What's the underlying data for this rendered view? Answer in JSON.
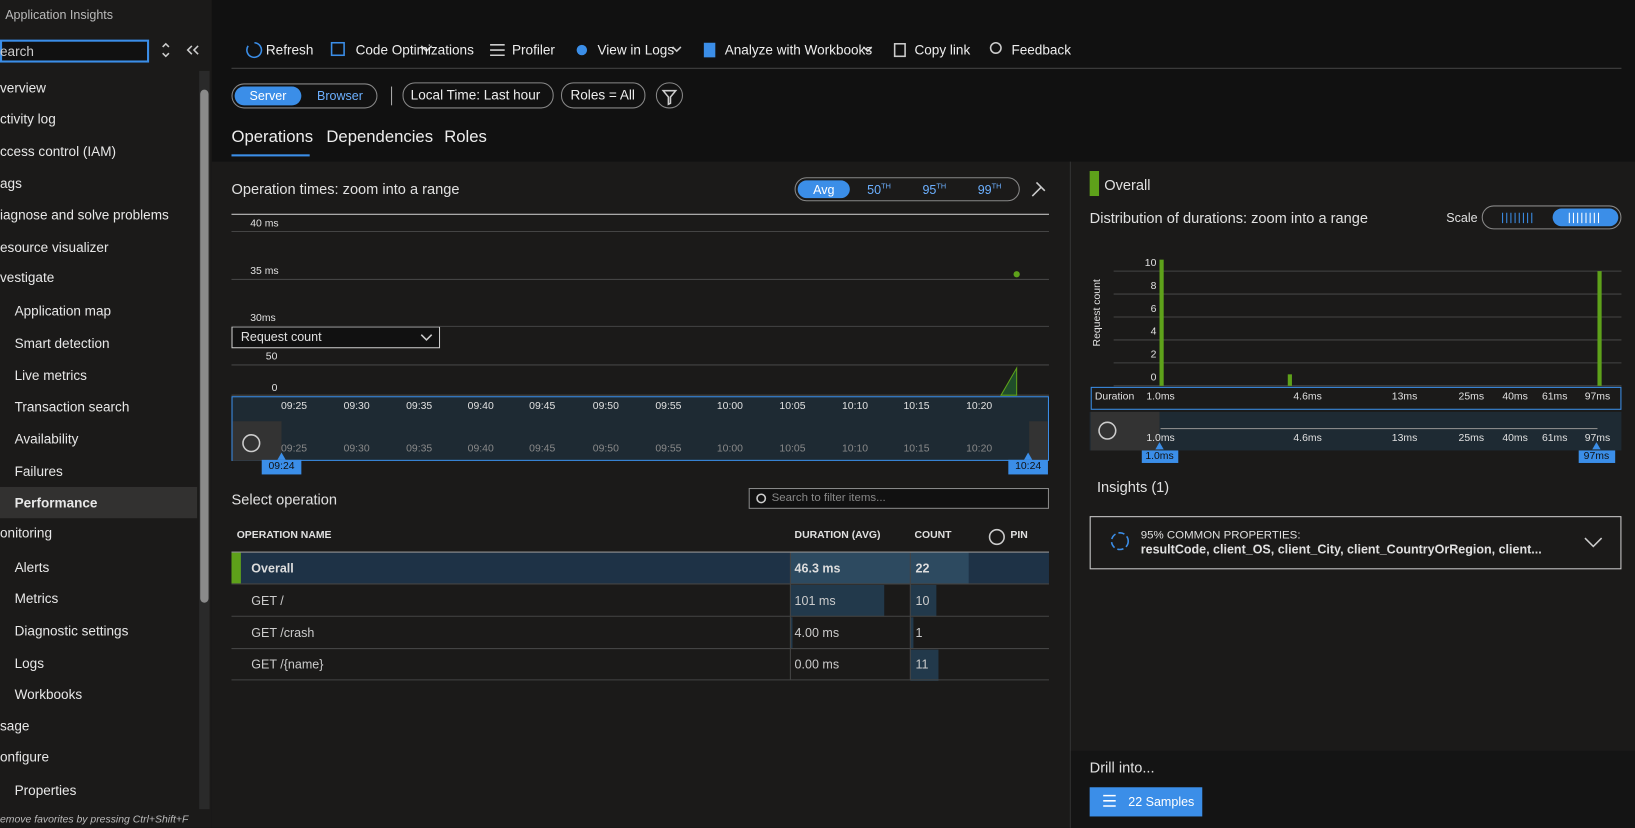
{
  "header": {
    "subtitle": "Application Insights"
  },
  "sidebar": {
    "search_placeholder": "earch",
    "items": [
      {
        "label": "verview",
        "kind": "top"
      },
      {
        "label": "ctivity log",
        "kind": "top"
      },
      {
        "label": "ccess control (IAM)",
        "kind": "top"
      },
      {
        "label": "ags",
        "kind": "top"
      },
      {
        "label": "iagnose and solve problems",
        "kind": "top"
      },
      {
        "label": "esource visualizer",
        "kind": "top"
      },
      {
        "label": "vestigate",
        "kind": "section"
      },
      {
        "label": "Application map",
        "kind": "item"
      },
      {
        "label": "Smart detection",
        "kind": "item"
      },
      {
        "label": "Live metrics",
        "kind": "item"
      },
      {
        "label": "Transaction search",
        "kind": "item"
      },
      {
        "label": "Availability",
        "kind": "item"
      },
      {
        "label": "Failures",
        "kind": "item"
      },
      {
        "label": "Performance",
        "kind": "selected"
      },
      {
        "label": "onitoring",
        "kind": "section"
      },
      {
        "label": "Alerts",
        "kind": "item"
      },
      {
        "label": "Metrics",
        "kind": "item"
      },
      {
        "label": "Diagnostic settings",
        "kind": "item"
      },
      {
        "label": "Logs",
        "kind": "item"
      },
      {
        "label": "Workbooks",
        "kind": "item"
      },
      {
        "label": "sage",
        "kind": "section"
      },
      {
        "label": "onfigure",
        "kind": "section"
      },
      {
        "label": "Properties",
        "kind": "item"
      }
    ],
    "footer": "emove favorites by pressing Ctrl+Shift+F"
  },
  "toolbar": {
    "items": [
      "Refresh",
      "Code Optimizations",
      "Profiler",
      "View in Logs",
      "Analyze with Workbooks",
      "Copy link",
      "Feedback"
    ]
  },
  "filters": {
    "server": "Server",
    "browser": "Browser",
    "time": "Local Time: Last hour",
    "roles": "Roles = All"
  },
  "tabs": [
    "Operations",
    "Dependencies",
    "Roles"
  ],
  "operation_chart": {
    "title": "Operation times: zoom into a range",
    "percentiles": [
      {
        "num": "Avg"
      },
      {
        "num": "50",
        "sup": "TH"
      },
      {
        "num": "95",
        "sup": "TH"
      },
      {
        "num": "99",
        "sup": "TH"
      }
    ],
    "yticks": [
      "40 ms",
      "35 ms",
      "30ms"
    ],
    "metric": "Request count",
    "count_ticks": [
      "50",
      "0"
    ],
    "xticks": [
      "09:25",
      "09:30",
      "09:35",
      "09:40",
      "09:45",
      "09:50",
      "09:55",
      "10:00",
      "10:05",
      "10:10",
      "10:15",
      "10:20"
    ],
    "range": [
      "09:24",
      "10:24"
    ]
  },
  "select_operation": {
    "title": "Select operation",
    "search_placeholder": "Search to filter items...",
    "columns": [
      "OPERATION NAME",
      "DURATION (AVG)",
      "COUNT",
      "PIN"
    ],
    "rows": [
      [
        "Overall",
        "46.3 ms",
        "22"
      ],
      [
        "GET /",
        "101 ms",
        "10"
      ],
      [
        "GET /crash",
        "4.00 ms",
        "1"
      ],
      [
        "GET /{name}",
        "0.00 ms",
        "11"
      ]
    ]
  },
  "distribution": {
    "overall": "Overall",
    "title": "Distribution of durations: zoom into a range",
    "scale": "Scale",
    "y_label": "Request count",
    "yticks": [
      "10",
      "8",
      "6",
      "4",
      "2",
      "0"
    ],
    "x_label": "Duration",
    "xticks": [
      "1.0ms",
      "4.6ms",
      "13ms",
      "25ms",
      "40ms",
      "61ms",
      "97ms"
    ],
    "range": [
      "1.0ms",
      "97ms"
    ]
  },
  "insights": {
    "title": "Insights (1)",
    "card_heading": "95% COMMON PROPERTIES:",
    "card_text": "resultCode, client_OS, client_City, client_CountryOrRegion, client..."
  },
  "drill": {
    "title": "Drill into...",
    "button": "22 Samples"
  }
}
